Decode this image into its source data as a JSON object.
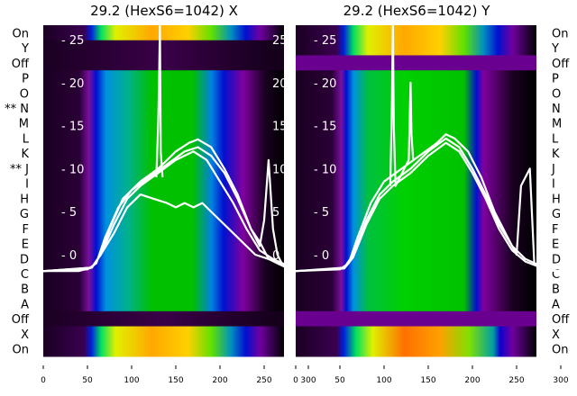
{
  "chart_data": [
    {
      "type": "heatmap",
      "title": "29.2 (HexS6=1042) X",
      "row_labels": [
        "On",
        "Y",
        "Off",
        "P",
        "O",
        "** N",
        "M",
        "L",
        "K",
        "** J",
        "I",
        "H",
        "G",
        "F",
        "E",
        "D",
        "C",
        "B",
        "A",
        "Off",
        "X",
        "On"
      ],
      "row_kinds": [
        "spec",
        "dark",
        "dark",
        "sig",
        "sig",
        "sig",
        "sig",
        "sig",
        "sig",
        "sig",
        "sig",
        "sig",
        "sig",
        "sig",
        "sig",
        "sig",
        "sig",
        "sig",
        "sig",
        "dark",
        "spec",
        "spec"
      ],
      "x_ticks": [
        0,
        50,
        100,
        150,
        200,
        250,
        300
      ],
      "xlim": [
        0,
        327
      ],
      "inner_y_ticks": [
        0,
        5,
        10,
        15,
        20,
        25
      ],
      "series": [
        {
          "name": "line1",
          "x": [
            0,
            40,
            55,
            65,
            75,
            90,
            110,
            130,
            150,
            165,
            175,
            190,
            205,
            220,
            235,
            245,
            250,
            255,
            260,
            265,
            270,
            290,
            310,
            327
          ],
          "y": [
            -1.9,
            -1.9,
            -1.5,
            0,
            3,
            6.5,
            8.5,
            10,
            12,
            13,
            13.4,
            12.5,
            10,
            7,
            3,
            1,
            4,
            11,
            3,
            0,
            -1,
            -1.8,
            -2.1,
            -2.2
          ]
        },
        {
          "name": "line2",
          "x": [
            0,
            50,
            60,
            70,
            85,
            100,
            120,
            140,
            160,
            175,
            190,
            205,
            220,
            235,
            245,
            255,
            265,
            275,
            295,
            327
          ],
          "y": [
            -1.9,
            -1.7,
            -1,
            2,
            5.5,
            7.5,
            9,
            10.5,
            12,
            12.5,
            11.5,
            9.5,
            6.5,
            3,
            1.5,
            -0.5,
            -1,
            -1.5,
            -2,
            -2.2
          ]
        },
        {
          "name": "line3",
          "x": [
            0,
            55,
            65,
            80,
            95,
            110,
            130,
            150,
            170,
            185,
            200,
            215,
            230,
            245,
            260,
            275,
            300,
            327
          ],
          "y": [
            -1.9,
            -1.5,
            0,
            3.5,
            6.5,
            8,
            9.5,
            11,
            12,
            11,
            8.5,
            6,
            3,
            0.5,
            -0.5,
            -1.2,
            -2,
            -2.2
          ]
        },
        {
          "name": "line4",
          "x": [
            0,
            55,
            65,
            80,
            95,
            110,
            125,
            140,
            150,
            160,
            170,
            180,
            195,
            210,
            225,
            240,
            255,
            270,
            290,
            327
          ],
          "y": [
            -1.9,
            -1.5,
            0,
            2.5,
            5.5,
            7,
            6.5,
            6,
            5.5,
            6,
            5.5,
            6,
            4.5,
            3,
            1.5,
            0,
            -0.5,
            -1,
            -2,
            -2.2
          ]
        },
        {
          "name": "spike",
          "x": [
            128,
            130,
            131,
            132,
            133,
            135
          ],
          "y": [
            9,
            15,
            20,
            27,
            12,
            9
          ]
        }
      ]
    },
    {
      "type": "heatmap",
      "title": "29.2 (HexS6=1042) Y",
      "row_labels": [
        "On",
        "Y",
        "Off",
        "P",
        "O",
        "N",
        "M",
        "L",
        "K",
        "J",
        "I",
        "H",
        "G",
        "F",
        "E",
        "D",
        "C",
        "B",
        "A",
        "Off",
        "X",
        "On"
      ],
      "row_kinds": [
        "spec",
        "spec",
        "purp",
        "sig2",
        "sig2",
        "sig2",
        "sig2",
        "sig2",
        "sig2",
        "sig2",
        "sig2",
        "sig2",
        "sig2",
        "sig2",
        "sig2",
        "sig2",
        "sig2",
        "sig2",
        "sig2",
        "purp",
        "spec2",
        "spec2"
      ],
      "x_ticks": [
        0,
        50,
        100,
        150,
        200,
        250,
        300
      ],
      "xlim": [
        0,
        327
      ],
      "inner_y_ticks": [
        0,
        5,
        10,
        15,
        20,
        25
      ],
      "series": [
        {
          "name": "line1",
          "x": [
            0,
            50,
            60,
            70,
            85,
            100,
            120,
            140,
            160,
            170,
            180,
            195,
            210,
            225,
            240,
            250,
            255,
            265,
            270,
            290,
            327
          ],
          "y": [
            -1.9,
            -1.7,
            -1,
            2,
            6,
            8.5,
            10,
            11.5,
            13,
            14,
            13.5,
            12,
            9,
            5,
            2,
            0,
            8,
            10,
            -1,
            -1.8,
            -2.2
          ]
        },
        {
          "name": "line2",
          "x": [
            0,
            55,
            65,
            80,
            95,
            110,
            130,
            150,
            170,
            185,
            200,
            215,
            230,
            245,
            260,
            275,
            300,
            327
          ],
          "y": [
            -1.9,
            -1.5,
            0,
            4,
            7,
            8.5,
            10,
            12,
            13.5,
            12.5,
            10,
            7,
            3.5,
            1,
            -0.5,
            -1.2,
            -2,
            -2.2
          ]
        },
        {
          "name": "line3",
          "x": [
            0,
            55,
            65,
            80,
            95,
            110,
            130,
            150,
            170,
            185,
            200,
            215,
            230,
            245,
            260,
            275,
            300,
            327
          ],
          "y": [
            -1.9,
            -1.6,
            -0.3,
            3.5,
            6.5,
            8,
            9.5,
            11.5,
            13,
            12,
            9.5,
            6.5,
            3,
            0.5,
            -0.8,
            -1.4,
            -2.1,
            -2.3
          ]
        },
        {
          "name": "spike",
          "x": [
            107,
            109,
            110,
            111,
            113,
            128,
            130,
            131,
            133
          ],
          "y": [
            8,
            18,
            27,
            15,
            8,
            11,
            20,
            14,
            11
          ]
        }
      ]
    }
  ],
  "colors": {
    "line": "#ffffff",
    "bg_dark": "#1a0022"
  }
}
